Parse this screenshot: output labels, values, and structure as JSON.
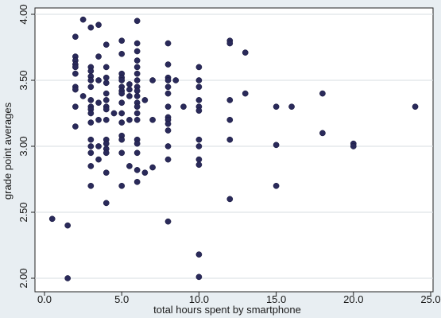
{
  "chart_data": {
    "type": "scatter",
    "xlabel": "total hours spent by smartphone",
    "ylabel": "grade point averages",
    "xlim": [
      0,
      25
    ],
    "ylim": [
      2.0,
      4.0
    ],
    "xticks": [
      0,
      5,
      10,
      15,
      20,
      25
    ],
    "xtick_labels": [
      "0.0",
      "5.0",
      "10.0",
      "15.0",
      "20.0",
      "25.0"
    ],
    "yticks": [
      2.0,
      2.5,
      3.0,
      3.5,
      4.0
    ],
    "ytick_labels": [
      "2.00",
      "2.50",
      "3.00",
      "3.50",
      "4.00"
    ],
    "grid": "horizontal",
    "marker_color": "#2a2a5a",
    "plot_background": "#ffffff",
    "page_background": "#e8eef2",
    "points": [
      [
        0.5,
        2.45
      ],
      [
        1.5,
        2.4
      ],
      [
        1.5,
        2.0
      ],
      [
        2,
        3.83
      ],
      [
        2,
        3.68
      ],
      [
        2,
        3.65
      ],
      [
        2,
        3.62
      ],
      [
        2,
        3.6
      ],
      [
        2,
        3.55
      ],
      [
        2,
        3.45
      ],
      [
        2,
        3.43
      ],
      [
        2,
        3.3
      ],
      [
        2,
        3.15
      ],
      [
        2.5,
        3.96
      ],
      [
        2.5,
        3.38
      ],
      [
        3,
        3.9
      ],
      [
        3,
        3.6
      ],
      [
        3,
        3.57
      ],
      [
        3,
        3.53
      ],
      [
        3,
        3.5
      ],
      [
        3,
        3.45
      ],
      [
        3,
        3.35
      ],
      [
        3,
        3.3
      ],
      [
        3,
        3.28
      ],
      [
        3,
        3.25
      ],
      [
        3,
        3.18
      ],
      [
        3,
        3.05
      ],
      [
        3,
        3.0
      ],
      [
        3,
        2.95
      ],
      [
        3,
        2.85
      ],
      [
        3,
        2.7
      ],
      [
        3.5,
        3.92
      ],
      [
        3.5,
        3.68
      ],
      [
        3.5,
        3.5
      ],
      [
        3.5,
        3.33
      ],
      [
        3.5,
        3.2
      ],
      [
        3.5,
        3.0
      ],
      [
        3.5,
        2.9
      ],
      [
        4,
        3.77
      ],
      [
        4,
        3.6
      ],
      [
        4,
        3.52
      ],
      [
        4,
        3.48
      ],
      [
        4,
        3.4
      ],
      [
        4,
        3.35
      ],
      [
        4,
        3.3
      ],
      [
        4,
        3.28
      ],
      [
        4,
        3.2
      ],
      [
        4,
        3.05
      ],
      [
        4,
        3.02
      ],
      [
        4,
        2.98
      ],
      [
        4,
        2.95
      ],
      [
        4,
        2.8
      ],
      [
        4,
        2.57
      ],
      [
        4.5,
        3.25
      ],
      [
        5,
        3.8
      ],
      [
        5,
        3.7
      ],
      [
        5,
        3.55
      ],
      [
        5,
        3.52
      ],
      [
        5,
        3.5
      ],
      [
        5,
        3.45
      ],
      [
        5,
        3.42
      ],
      [
        5,
        3.4
      ],
      [
        5,
        3.33
      ],
      [
        5,
        3.25
      ],
      [
        5,
        3.18
      ],
      [
        5,
        3.08
      ],
      [
        5,
        3.05
      ],
      [
        5,
        2.95
      ],
      [
        5,
        2.7
      ],
      [
        5.5,
        3.47
      ],
      [
        5.5,
        3.43
      ],
      [
        5.5,
        3.38
      ],
      [
        5.5,
        3.2
      ],
      [
        5.5,
        2.85
      ],
      [
        6,
        3.95
      ],
      [
        6,
        3.78
      ],
      [
        6,
        3.72
      ],
      [
        6,
        3.65
      ],
      [
        6,
        3.6
      ],
      [
        6,
        3.55
      ],
      [
        6,
        3.5
      ],
      [
        6,
        3.45
      ],
      [
        6,
        3.42
      ],
      [
        6,
        3.38
      ],
      [
        6,
        3.33
      ],
      [
        6,
        3.3
      ],
      [
        6,
        3.25
      ],
      [
        6,
        3.2
      ],
      [
        6,
        3.05
      ],
      [
        6,
        3.02
      ],
      [
        6,
        2.95
      ],
      [
        6,
        2.82
      ],
      [
        6,
        2.73
      ],
      [
        6.5,
        3.35
      ],
      [
        6.5,
        2.8
      ],
      [
        7,
        3.5
      ],
      [
        7,
        3.2
      ],
      [
        7,
        2.84
      ],
      [
        8,
        3.78
      ],
      [
        8,
        3.62
      ],
      [
        8,
        3.52
      ],
      [
        8,
        3.5
      ],
      [
        8,
        3.45
      ],
      [
        8,
        3.4
      ],
      [
        8,
        3.3
      ],
      [
        8,
        3.22
      ],
      [
        8,
        3.2
      ],
      [
        8,
        3.17
      ],
      [
        8,
        3.12
      ],
      [
        8,
        3.0
      ],
      [
        8,
        2.9
      ],
      [
        8,
        2.43
      ],
      [
        8.5,
        3.5
      ],
      [
        9,
        3.3
      ],
      [
        10,
        3.6
      ],
      [
        10,
        3.5
      ],
      [
        10,
        3.45
      ],
      [
        10,
        3.35
      ],
      [
        10,
        3.3
      ],
      [
        10,
        3.27
      ],
      [
        10,
        3.05
      ],
      [
        10,
        3.0
      ],
      [
        10,
        2.9
      ],
      [
        10,
        2.86
      ],
      [
        10,
        2.18
      ],
      [
        10,
        2.01
      ],
      [
        12,
        3.8
      ],
      [
        12,
        3.78
      ],
      [
        12,
        3.35
      ],
      [
        12,
        3.2
      ],
      [
        12,
        3.05
      ],
      [
        12,
        2.6
      ],
      [
        13,
        3.71
      ],
      [
        13,
        3.4
      ],
      [
        15,
        3.3
      ],
      [
        15,
        3.01
      ],
      [
        15,
        2.7
      ],
      [
        16,
        3.3
      ],
      [
        18,
        3.4
      ],
      [
        18,
        3.1
      ],
      [
        20,
        3.02
      ],
      [
        20,
        3.0
      ],
      [
        24,
        3.3
      ]
    ]
  }
}
